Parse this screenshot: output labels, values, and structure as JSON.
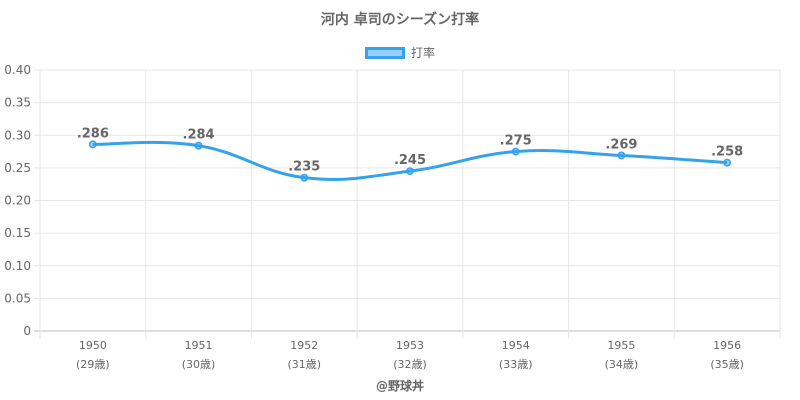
{
  "chart_data": {
    "type": "line",
    "title": "河内 卓司のシーズン打率",
    "legend": {
      "label": "打率",
      "placement": "top"
    },
    "categories": [
      "1950",
      "1951",
      "1952",
      "1953",
      "1954",
      "1955",
      "1956"
    ],
    "category_sublabels": [
      "(29歳)",
      "(30歳)",
      "(31歳)",
      "(32歳)",
      "(33歳)",
      "(34歳)",
      "(35歳)"
    ],
    "series": [
      {
        "name": "打率",
        "values": [
          0.286,
          0.284,
          0.235,
          0.245,
          0.275,
          0.269,
          0.258
        ],
        "data_labels": [
          ".286",
          ".284",
          ".235",
          ".245",
          ".275",
          ".269",
          ".258"
        ]
      }
    ],
    "ylim": [
      0,
      0.4
    ],
    "yticks": [
      "0",
      "0.05",
      "0.10",
      "0.15",
      "0.20",
      "0.25",
      "0.30",
      "0.35",
      "0.40"
    ],
    "grid": true,
    "colors": {
      "line": "#36a2eb",
      "fill": "rgba(54,162,235,0.5)",
      "grid": "#e6e6e6",
      "text": "#666666"
    }
  },
  "credit": "@野球丼"
}
